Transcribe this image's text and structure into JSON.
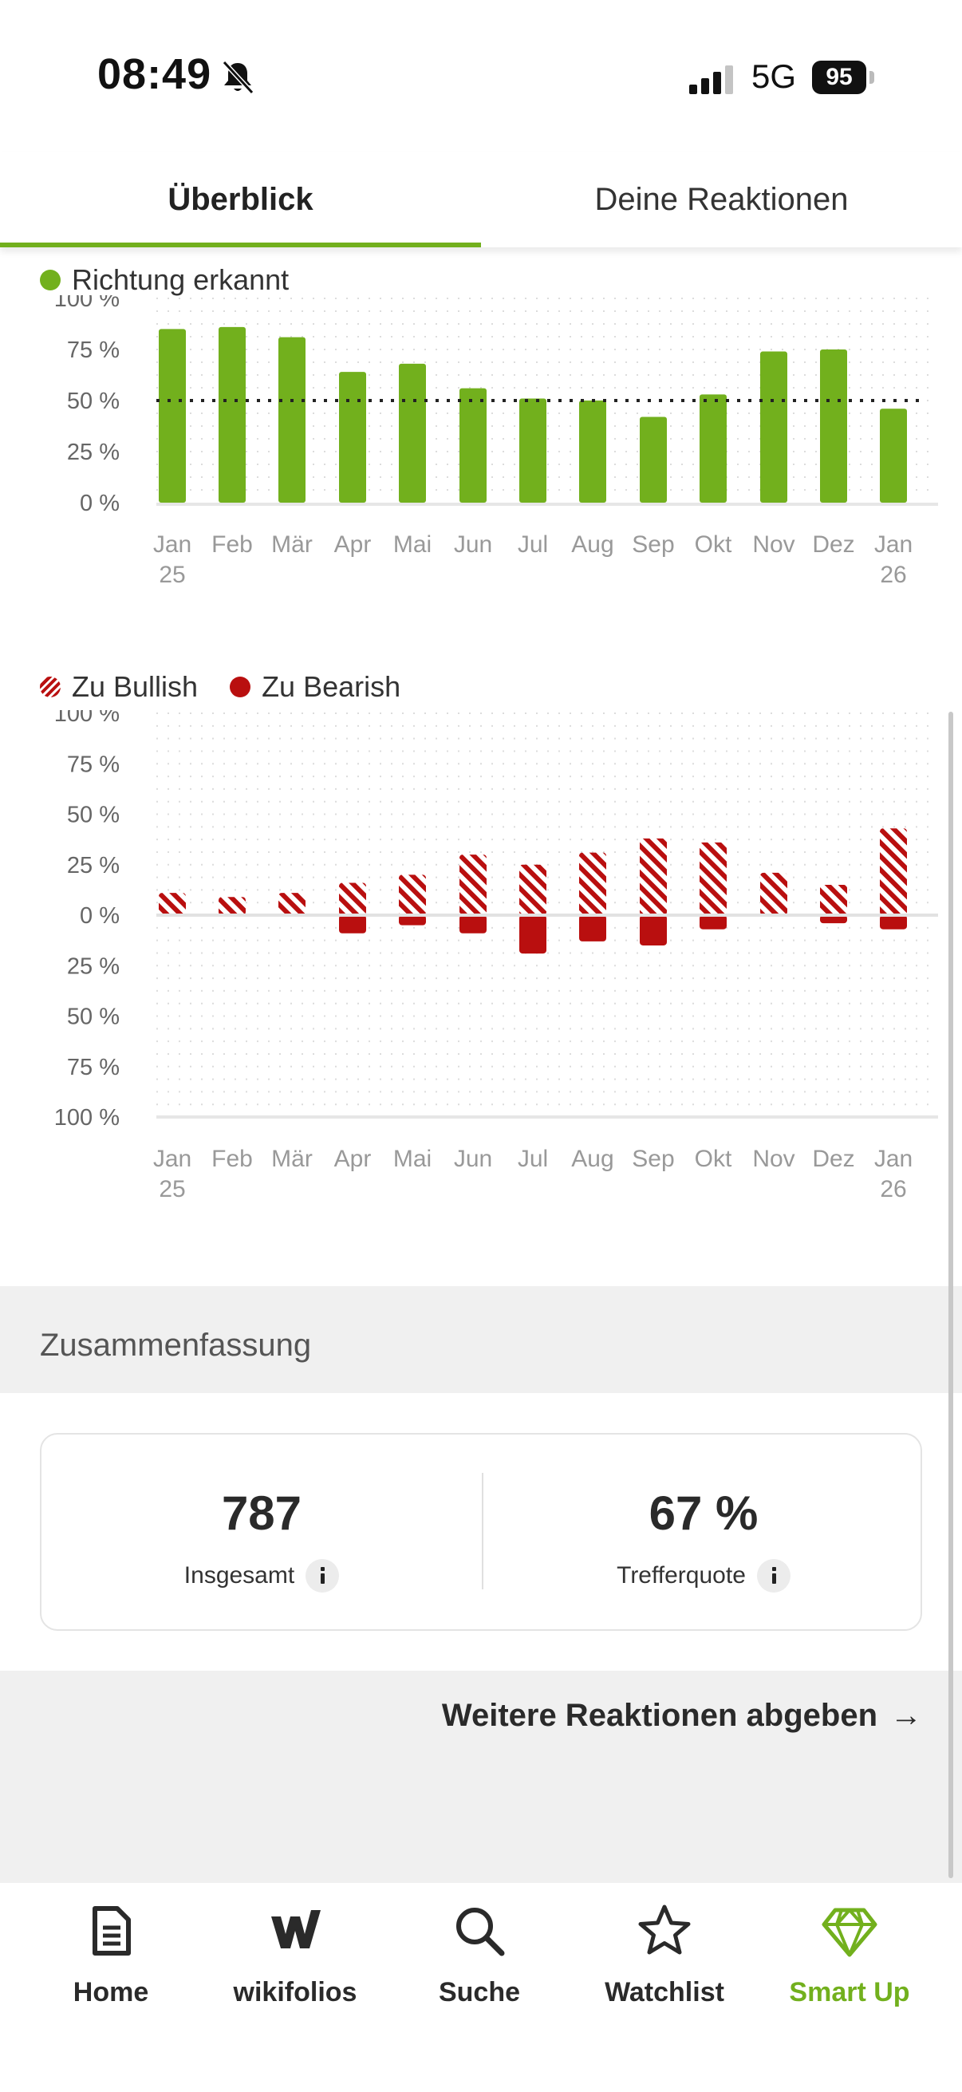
{
  "status_bar": {
    "time": "08:49",
    "network": "5G",
    "battery": "95"
  },
  "tabs": [
    {
      "label": "Überblick",
      "active": true
    },
    {
      "label": "Deine Reaktionen",
      "active": false
    }
  ],
  "colors": {
    "accent": "#72b01d",
    "bar_green": "#72b01d",
    "bar_red": "#b90f0f"
  },
  "chart_data": [
    {
      "type": "bar",
      "legend": [
        "Richtung erkannt"
      ],
      "categories": [
        "Jan 25",
        "Feb",
        "Mär",
        "Apr",
        "Mai",
        "Jun",
        "Jul",
        "Aug",
        "Sep",
        "Okt",
        "Nov",
        "Dez",
        "Jan 26"
      ],
      "series": [
        {
          "name": "Richtung erkannt",
          "values": [
            85,
            86,
            81,
            64,
            68,
            56,
            51,
            50,
            42,
            53,
            74,
            75,
            46
          ]
        }
      ],
      "reference_line": 50,
      "y_tick_labels": [
        "100 %",
        "75 %",
        "50 %",
        "25 %",
        "0 %"
      ],
      "ylim": [
        0,
        100
      ],
      "grid": true
    },
    {
      "type": "bar",
      "legend": [
        "Zu Bullish",
        "Zu Bearish"
      ],
      "categories": [
        "Jan 25",
        "Feb",
        "Mär",
        "Apr",
        "Mai",
        "Jun",
        "Jul",
        "Aug",
        "Sep",
        "Okt",
        "Nov",
        "Dez",
        "Jan 26"
      ],
      "series": [
        {
          "name": "Zu Bullish",
          "values": [
            11,
            9,
            11,
            16,
            20,
            30,
            25,
            31,
            38,
            36,
            21,
            15,
            43
          ]
        },
        {
          "name": "Zu Bearish",
          "values": [
            0,
            0,
            0,
            9,
            5,
            9,
            19,
            13,
            15,
            7,
            0,
            4,
            7
          ]
        }
      ],
      "y_tick_labels": [
        "100 %",
        "75 %",
        "50 %",
        "25 %",
        "0 %",
        "25 %",
        "50 %",
        "75 %",
        "100 %"
      ],
      "ylim": [
        -100,
        100
      ],
      "grid": true
    }
  ],
  "summary": {
    "title": "Zusammenfassung",
    "total_value": "787",
    "total_label": "Insgesamt",
    "hit_rate_value": "67 %",
    "hit_rate_label": "Trefferquote"
  },
  "more_link": "Weitere Reaktionen abgeben",
  "bottom_nav": [
    {
      "label": "Home",
      "icon": "document-icon",
      "active": false
    },
    {
      "label": "wikifolios",
      "icon": "wikifolio-logo-icon",
      "active": false
    },
    {
      "label": "Suche",
      "icon": "search-icon",
      "active": false
    },
    {
      "label": "Watchlist",
      "icon": "star-icon",
      "active": false
    },
    {
      "label": "Smart Up",
      "icon": "diamond-icon",
      "active": true
    }
  ]
}
